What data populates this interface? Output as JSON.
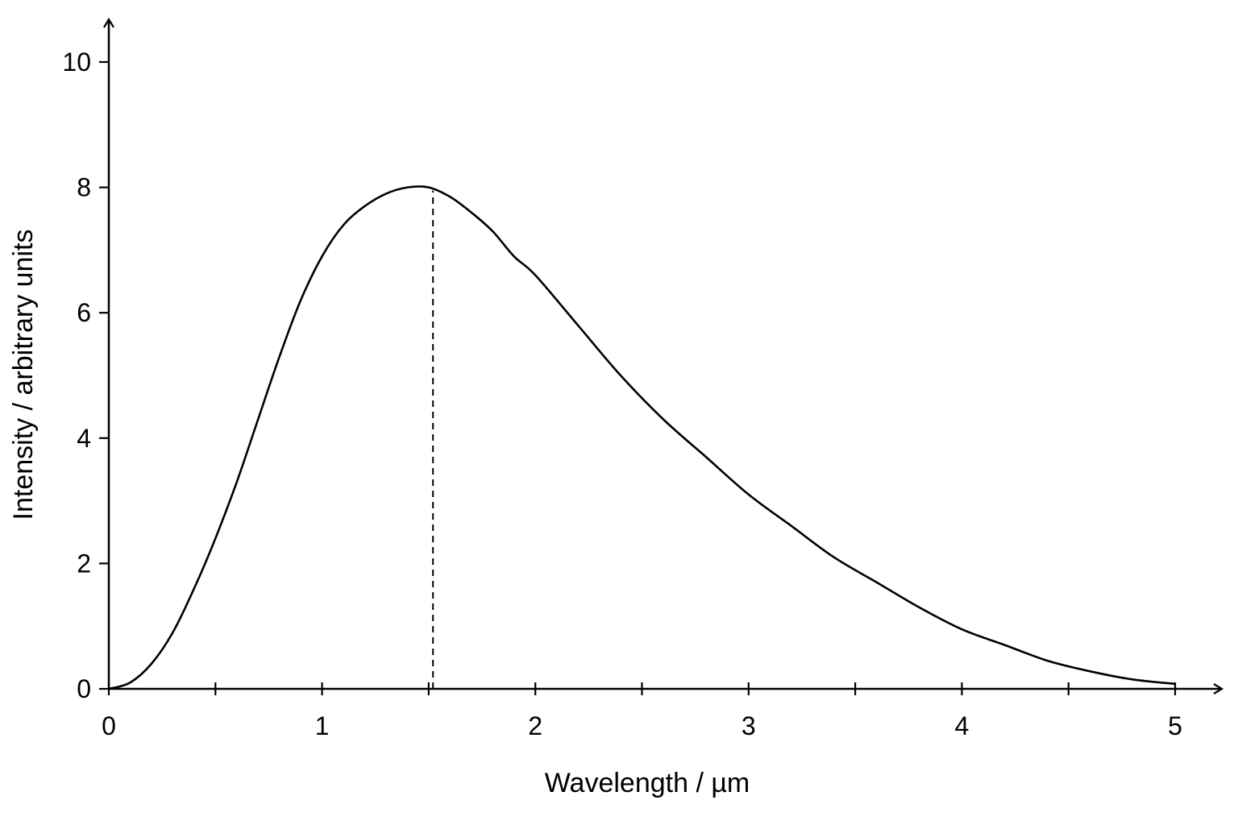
{
  "chart_data": {
    "type": "line",
    "title": "",
    "xlabel": "Wavelength / µm",
    "ylabel": "Intensity / arbitrary units",
    "xlim": [
      0,
      5
    ],
    "ylim": [
      0,
      10
    ],
    "x_ticks_major": [
      0,
      1,
      2,
      3,
      4,
      5
    ],
    "x_ticks_minor": [
      0.5,
      1.5,
      2.5,
      3.5,
      4.5
    ],
    "y_ticks": [
      0,
      2,
      4,
      6,
      8,
      10
    ],
    "x_tick_labels": [
      "0",
      "1",
      "2",
      "3",
      "4",
      "5"
    ],
    "y_tick_labels": [
      "0",
      "2",
      "4",
      "6",
      "8",
      "10"
    ],
    "grid": false,
    "legend": "none",
    "series": [
      {
        "x": [
          0,
          0.1,
          0.2,
          0.3,
          0.4,
          0.5,
          0.6,
          0.7,
          0.8,
          0.9,
          1.0,
          1.1,
          1.2,
          1.3,
          1.4,
          1.5,
          1.6,
          1.7,
          1.8,
          1.9,
          2.0,
          2.2,
          2.4,
          2.6,
          2.8,
          3.0,
          3.2,
          3.4,
          3.6,
          3.8,
          4.0,
          4.2,
          4.4,
          4.6,
          4.8,
          5.0
        ],
        "y": [
          0,
          0.1,
          0.4,
          0.9,
          1.6,
          2.4,
          3.3,
          4.3,
          5.3,
          6.2,
          6.9,
          7.4,
          7.7,
          7.9,
          8.0,
          8.0,
          7.85,
          7.6,
          7.3,
          6.9,
          6.6,
          5.8,
          5.0,
          4.3,
          3.7,
          3.1,
          2.6,
          2.1,
          1.7,
          1.3,
          0.95,
          0.7,
          0.45,
          0.28,
          0.15,
          0.08
        ]
      }
    ],
    "annotations": [
      {
        "type": "vertical-dashed-line",
        "x": 1.52,
        "y_from": 0,
        "y_to": 7.95
      }
    ]
  }
}
